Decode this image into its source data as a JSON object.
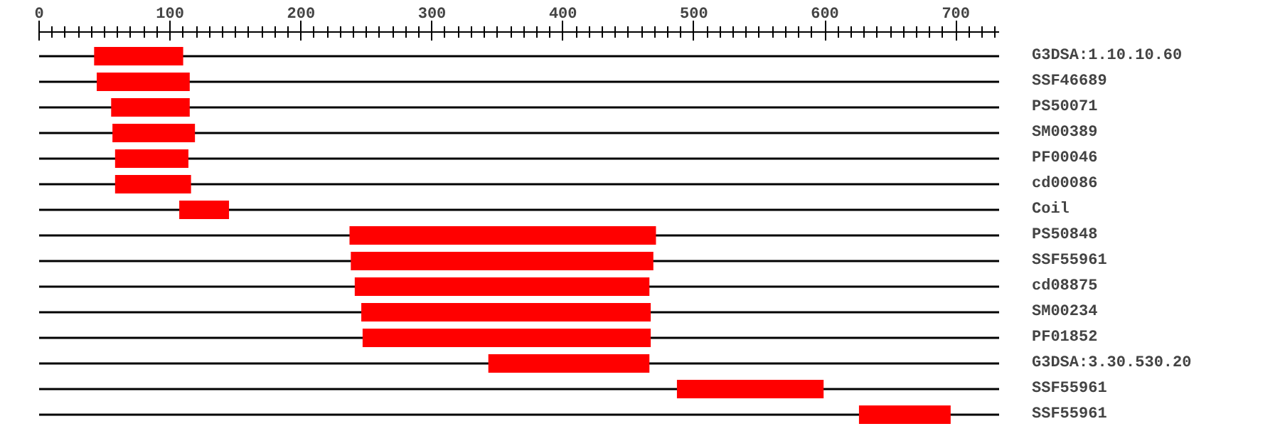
{
  "chart_data": {
    "type": "bar",
    "orientation": "horizontal",
    "categories": [
      "G3DSA:1.10.10.60",
      "SSF46689",
      "PS50071",
      "SM00389",
      "PF00046",
      "cd00086",
      "Coil",
      "PS50848",
      "SSF55961",
      "cd08875",
      "SM00234",
      "PF01852",
      "G3DSA:3.30.530.20",
      "SSF55961",
      "SSF55961"
    ],
    "base": [
      42,
      44,
      55,
      56,
      58,
      58,
      107,
      237,
      238,
      241,
      246,
      247,
      343,
      487,
      626
    ],
    "values": [
      68,
      71,
      60,
      63,
      56,
      58,
      38,
      234,
      231,
      225,
      221,
      220,
      123,
      112,
      70
    ],
    "color": "#ff0000",
    "xlim": [
      0,
      733
    ],
    "xticks": [
      0,
      {
        "value": 10,
        "label": null
      },
      {
        "value": 20,
        "label": null
      },
      {
        "value": 30,
        "label": null
      },
      {
        "value": 40,
        "label": null
      },
      {
        "value": 50,
        "label": null
      },
      {
        "value": 60,
        "label": null
      },
      {
        "value": 70,
        "label": null
      },
      {
        "value": 80,
        "label": null
      },
      {
        "value": 90,
        "label": null
      },
      100,
      {
        "value": 110,
        "label": null
      },
      {
        "value": 120,
        "label": null
      },
      {
        "value": 130,
        "label": null
      },
      {
        "value": 140,
        "label": null
      },
      {
        "value": 150,
        "label": null
      },
      {
        "value": 160,
        "label": null
      },
      {
        "value": 170,
        "label": null
      },
      {
        "value": 180,
        "label": null
      },
      {
        "value": 190,
        "label": null
      },
      200,
      {
        "value": 210,
        "label": null
      },
      {
        "value": 220,
        "label": null
      },
      {
        "value": 230,
        "label": null
      },
      {
        "value": 240,
        "label": null
      },
      {
        "value": 250,
        "label": null
      },
      {
        "value": 260,
        "label": null
      },
      {
        "value": 270,
        "label": null
      },
      {
        "value": 280,
        "label": null
      },
      {
        "value": 290,
        "label": null
      },
      300,
      {
        "value": 310,
        "label": null
      },
      {
        "value": 320,
        "label": null
      },
      {
        "value": 330,
        "label": null
      },
      {
        "value": 340,
        "label": null
      },
      {
        "value": 350,
        "label": null
      },
      {
        "value": 360,
        "label": null
      },
      {
        "value": 370,
        "label": null
      },
      {
        "value": 380,
        "label": null
      },
      {
        "value": 390,
        "label": null
      },
      400,
      {
        "value": 410,
        "label": null
      },
      {
        "value": 420,
        "label": null
      },
      {
        "value": 430,
        "label": null
      },
      {
        "value": 440,
        "label": null
      },
      {
        "value": 450,
        "label": null
      },
      {
        "value": 460,
        "label": null
      },
      {
        "value": 470,
        "label": null
      },
      {
        "value": 480,
        "label": null
      },
      {
        "value": 490,
        "label": null
      },
      500,
      {
        "value": 510,
        "label": null
      },
      {
        "value": 520,
        "label": null
      },
      {
        "value": 530,
        "label": null
      },
      {
        "value": 540,
        "label": null
      },
      {
        "value": 550,
        "label": null
      },
      {
        "value": 560,
        "label": null
      },
      {
        "value": 570,
        "label": null
      },
      {
        "value": 580,
        "label": null
      },
      {
        "value": 590,
        "label": null
      },
      600,
      {
        "value": 610,
        "label": null
      },
      {
        "value": 620,
        "label": null
      },
      {
        "value": 630,
        "label": null
      },
      {
        "value": 640,
        "label": null
      },
      {
        "value": 650,
        "label": null
      },
      {
        "value": 660,
        "label": null
      },
      {
        "value": 670,
        "label": null
      },
      {
        "value": 680,
        "label": null
      },
      {
        "value": 690,
        "label": null
      },
      700,
      {
        "value": 710,
        "label": null
      },
      {
        "value": 720,
        "label": null
      },
      {
        "value": 730,
        "label": null
      }
    ],
    "grid": "y"
  }
}
